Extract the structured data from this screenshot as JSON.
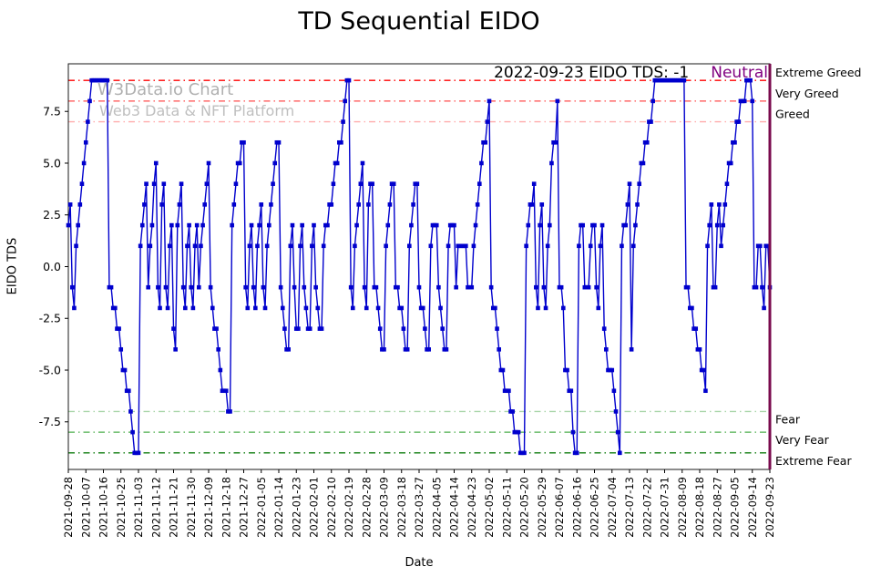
{
  "watermark": {
    "line1": "W3Data.io Chart",
    "line2": "Web3 Data & NFT Platform"
  },
  "annotation": {
    "text": "2022-09-23 EIDO TDS: -1",
    "status": "Neutral",
    "status_color": "#800080"
  },
  "chart_data": {
    "type": "line",
    "title": "TD Sequential EIDO",
    "xlabel": "Date",
    "ylabel": "EIDO TDS",
    "ylim": [
      -9.8,
      9.8
    ],
    "grid": false,
    "legend_position": "none",
    "line_color": "#0000cd",
    "current_date_line_color": "#7a0b4e",
    "ytick_values": [
      7.5,
      5.0,
      2.5,
      0.0,
      -2.5,
      -5.0,
      -7.5
    ],
    "ytick_labels": [
      "7.5",
      "5.0",
      "2.5",
      "0.0",
      "-2.5",
      "-5.0",
      "-7.5"
    ],
    "tick_step": 9,
    "x_tick_labels": [
      "2021-09-28",
      "2021-10-07",
      "2021-10-16",
      "2021-10-25",
      "2021-11-03",
      "2021-11-12",
      "2021-11-21",
      "2021-11-30",
      "2021-12-09",
      "2021-12-18",
      "2021-12-27",
      "2022-01-05",
      "2022-01-14",
      "2022-01-23",
      "2022-02-01",
      "2022-02-10",
      "2022-02-19",
      "2022-02-28",
      "2022-03-09",
      "2022-03-18",
      "2022-03-27",
      "2022-04-05",
      "2022-04-14",
      "2022-04-23",
      "2022-05-02",
      "2022-05-11",
      "2022-05-20",
      "2022-05-29",
      "2022-06-07",
      "2022-06-16",
      "2022-06-25",
      "2022-07-04",
      "2022-07-13",
      "2022-07-22",
      "2022-07-31",
      "2022-08-09",
      "2022-08-18",
      "2022-08-27",
      "2022-09-05",
      "2022-09-14",
      "2022-09-23"
    ],
    "thresholds": [
      {
        "label": "Extreme Greed",
        "value": 9,
        "color": "#ff0000"
      },
      {
        "label": "Very Greed",
        "value": 8,
        "color": "#ff4d4d"
      },
      {
        "label": "Greed",
        "value": 7,
        "color": "#ffadad"
      },
      {
        "label": "Fear",
        "value": -7,
        "color": "#a8d5a8"
      },
      {
        "label": "Very Fear",
        "value": -8,
        "color": "#4daf4d"
      },
      {
        "label": "Extreme Fear",
        "value": -9,
        "color": "#0f7d0f"
      }
    ],
    "values": [
      2,
      3,
      -1,
      -2,
      1,
      2,
      3,
      4,
      5,
      6,
      7,
      8,
      9,
      9,
      9,
      9,
      9,
      9,
      9,
      9,
      9,
      -1,
      -1,
      -2,
      -2,
      -3,
      -3,
      -4,
      -5,
      -5,
      -6,
      -6,
      -7,
      -8,
      -9,
      -9,
      -9,
      1,
      2,
      3,
      4,
      -1,
      1,
      2,
      4,
      5,
      -1,
      -2,
      3,
      4,
      -1,
      -2,
      1,
      2,
      -3,
      -4,
      2,
      3,
      4,
      -1,
      -2,
      1,
      2,
      -1,
      -2,
      1,
      2,
      -1,
      1,
      2,
      3,
      4,
      5,
      -1,
      -2,
      -3,
      -3,
      -4,
      -5,
      -6,
      -6,
      -6,
      -7,
      -7,
      2,
      3,
      4,
      5,
      5,
      6,
      6,
      -1,
      -2,
      1,
      2,
      -1,
      -2,
      1,
      2,
      3,
      -1,
      -2,
      1,
      2,
      3,
      4,
      5,
      6,
      6,
      -1,
      -2,
      -3,
      -4,
      -4,
      1,
      2,
      -1,
      -3,
      -3,
      1,
      2,
      -1,
      -2,
      -3,
      -3,
      1,
      2,
      -1,
      -2,
      -3,
      -3,
      1,
      2,
      2,
      3,
      3,
      4,
      5,
      5,
      6,
      6,
      7,
      8,
      9,
      9,
      -1,
      -2,
      1,
      2,
      3,
      4,
      5,
      -1,
      -2,
      3,
      4,
      4,
      -1,
      -1,
      -2,
      -3,
      -4,
      -4,
      1,
      2,
      3,
      4,
      4,
      -1,
      -1,
      -2,
      -2,
      -3,
      -4,
      -4,
      1,
      2,
      3,
      4,
      4,
      -1,
      -2,
      -2,
      -3,
      -4,
      -4,
      1,
      2,
      2,
      2,
      -1,
      -2,
      -3,
      -4,
      -4,
      1,
      2,
      2,
      2,
      -1,
      1,
      1,
      1,
      1,
      1,
      -1,
      -1,
      -1,
      1,
      2,
      3,
      4,
      5,
      6,
      6,
      7,
      8,
      -1,
      -2,
      -2,
      -3,
      -4,
      -5,
      -5,
      -6,
      -6,
      -6,
      -7,
      -7,
      -8,
      -8,
      -8,
      -9,
      -9,
      -9,
      1,
      2,
      3,
      3,
      4,
      -1,
      -2,
      2,
      3,
      -1,
      -2,
      1,
      2,
      5,
      6,
      6,
      8,
      -1,
      -1,
      -2,
      -5,
      -5,
      -6,
      -6,
      -8,
      -9,
      -9,
      1,
      2,
      2,
      -1,
      -1,
      -1,
      1,
      2,
      2,
      -1,
      -2,
      1,
      2,
      -3,
      -4,
      -5,
      -5,
      -5,
      -6,
      -7,
      -8,
      -9,
      1,
      2,
      2,
      3,
      4,
      -4,
      1,
      2,
      3,
      4,
      5,
      5,
      6,
      6,
      7,
      7,
      8,
      9,
      9,
      9,
      9,
      9,
      9,
      9,
      9,
      9,
      9,
      9,
      9,
      9,
      9,
      9,
      9,
      -1,
      -1,
      -2,
      -2,
      -3,
      -3,
      -4,
      -4,
      -5,
      -5,
      -6,
      1,
      2,
      3,
      -1,
      -1,
      2,
      3,
      1,
      2,
      3,
      4,
      5,
      5,
      6,
      6,
      7,
      7,
      8,
      8,
      8,
      9,
      9,
      9,
      8,
      -1,
      -1,
      1,
      1,
      -1,
      -2,
      1,
      1,
      -1
    ]
  }
}
